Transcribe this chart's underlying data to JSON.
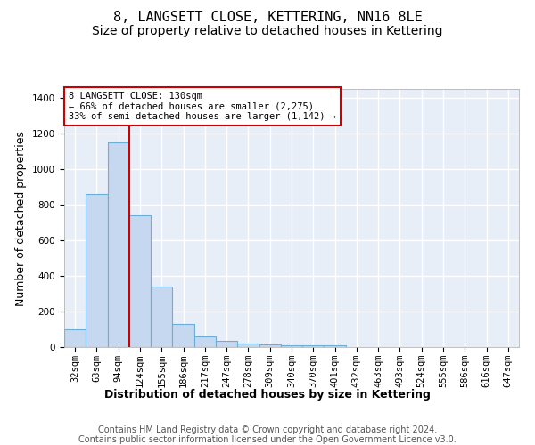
{
  "title": "8, LANGSETT CLOSE, KETTERING, NN16 8LE",
  "subtitle": "Size of property relative to detached houses in Kettering",
  "xlabel": "Distribution of detached houses by size in Kettering",
  "ylabel": "Number of detached properties",
  "footnote1": "Contains HM Land Registry data © Crown copyright and database right 2024.",
  "footnote2": "Contains public sector information licensed under the Open Government Licence v3.0.",
  "categories": [
    "32sqm",
    "63sqm",
    "94sqm",
    "124sqm",
    "155sqm",
    "186sqm",
    "217sqm",
    "247sqm",
    "278sqm",
    "309sqm",
    "340sqm",
    "370sqm",
    "401sqm",
    "432sqm",
    "463sqm",
    "493sqm",
    "524sqm",
    "555sqm",
    "586sqm",
    "616sqm",
    "647sqm"
  ],
  "values": [
    100,
    860,
    1150,
    740,
    340,
    130,
    60,
    35,
    20,
    15,
    10,
    8,
    10,
    0,
    0,
    0,
    0,
    0,
    0,
    0,
    0
  ],
  "bar_color": "#c5d8ef",
  "bar_edge_color": "#6baed6",
  "vline_x": 2.5,
  "vline_color": "#cc0000",
  "annotation_box_text": "8 LANGSETT CLOSE: 130sqm\n← 66% of detached houses are smaller (2,275)\n33% of semi-detached houses are larger (1,142) →",
  "annotation_box_color": "#cc0000",
  "ylim": [
    0,
    1450
  ],
  "yticks": [
    0,
    200,
    400,
    600,
    800,
    1000,
    1200,
    1400
  ],
  "background_color": "#e8eef8",
  "grid_color": "#ffffff",
  "title_fontsize": 11,
  "subtitle_fontsize": 10,
  "axis_label_fontsize": 9,
  "tick_fontsize": 7.5,
  "footnote_fontsize": 7
}
